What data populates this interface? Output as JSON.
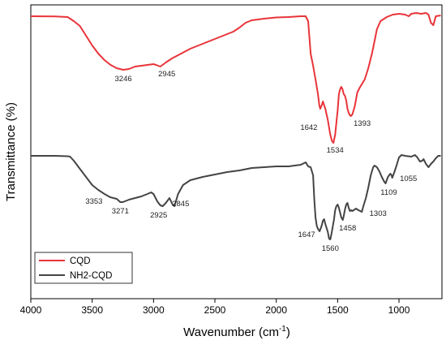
{
  "chart_data": {
    "type": "line",
    "xlabel": "Wavenumber (cm",
    "xlabel_sup": "-1",
    "xlabel_close": ")",
    "ylabel": "Transmittance (%)",
    "xlim": [
      4000,
      650
    ],
    "x_reversed": true,
    "xticks": [
      4000,
      3500,
      3000,
      2500,
      2000,
      1500,
      1000
    ],
    "y_tick_labels_shown": false,
    "grid": false,
    "legend_position": "bottom-left",
    "series": [
      {
        "name": "CQD",
        "color": "#e8343a",
        "points": [
          [
            4000,
            14
          ],
          [
            3800,
            14.2
          ],
          [
            3700,
            15
          ],
          [
            3650,
            20
          ],
          [
            3600,
            26
          ],
          [
            3550,
            38
          ],
          [
            3500,
            50
          ],
          [
            3450,
            60
          ],
          [
            3400,
            68
          ],
          [
            3350,
            74
          ],
          [
            3300,
            78
          ],
          [
            3246,
            80
          ],
          [
            3200,
            79
          ],
          [
            3150,
            76
          ],
          [
            3100,
            75
          ],
          [
            3050,
            74
          ],
          [
            3000,
            73
          ],
          [
            2980,
            74
          ],
          [
            2945,
            76
          ],
          [
            2900,
            71
          ],
          [
            2850,
            66
          ],
          [
            2800,
            62
          ],
          [
            2750,
            58
          ],
          [
            2700,
            54
          ],
          [
            2650,
            51
          ],
          [
            2600,
            48
          ],
          [
            2550,
            45
          ],
          [
            2500,
            42
          ],
          [
            2450,
            39
          ],
          [
            2400,
            36
          ],
          [
            2350,
            33
          ],
          [
            2300,
            28
          ],
          [
            2250,
            22
          ],
          [
            2200,
            19
          ],
          [
            2100,
            17
          ],
          [
            2000,
            15.5
          ],
          [
            1900,
            15
          ],
          [
            1800,
            14
          ],
          [
            1760,
            14
          ],
          [
            1740,
            20
          ],
          [
            1720,
            60
          ],
          [
            1700,
            75
          ],
          [
            1680,
            92
          ],
          [
            1660,
            110
          ],
          [
            1650,
            123
          ],
          [
            1642,
            128
          ],
          [
            1630,
            124
          ],
          [
            1620,
            119
          ],
          [
            1600,
            128
          ],
          [
            1580,
            142
          ],
          [
            1560,
            160
          ],
          [
            1545,
            168
          ],
          [
            1534,
            170
          ],
          [
            1520,
            160
          ],
          [
            1500,
            130
          ],
          [
            1490,
            110
          ],
          [
            1480,
            104
          ],
          [
            1470,
            101
          ],
          [
            1460,
            104
          ],
          [
            1450,
            110
          ],
          [
            1440,
            112
          ],
          [
            1430,
            118
          ],
          [
            1420,
            128
          ],
          [
            1410,
            133
          ],
          [
            1400,
            136
          ],
          [
            1393,
            137
          ],
          [
            1380,
            135
          ],
          [
            1360,
            125
          ],
          [
            1340,
            108
          ],
          [
            1320,
            102
          ],
          [
            1300,
            97
          ],
          [
            1280,
            92
          ],
          [
            1250,
            78
          ],
          [
            1220,
            60
          ],
          [
            1200,
            45
          ],
          [
            1180,
            30
          ],
          [
            1150,
            20
          ],
          [
            1100,
            15
          ],
          [
            1050,
            12
          ],
          [
            1000,
            11
          ],
          [
            950,
            12
          ],
          [
            920,
            14
          ],
          [
            900,
            11
          ],
          [
            860,
            10
          ],
          [
            820,
            11
          ],
          [
            780,
            10
          ],
          [
            760,
            12
          ],
          [
            740,
            22
          ],
          [
            720,
            25
          ],
          [
            700,
            14
          ],
          [
            660,
            13
          ]
        ]
      },
      {
        "name": "NH2-CQD",
        "color": "#444444",
        "points": [
          [
            4000,
            186
          ],
          [
            3800,
            186
          ],
          [
            3700,
            186.5
          ],
          [
            3680,
            187
          ],
          [
            3650,
            192
          ],
          [
            3600,
            202
          ],
          [
            3550,
            212
          ],
          [
            3500,
            222
          ],
          [
            3450,
            228
          ],
          [
            3400,
            233
          ],
          [
            3353,
            237
          ],
          [
            3300,
            239
          ],
          [
            3271,
            243
          ],
          [
            3250,
            243
          ],
          [
            3200,
            240
          ],
          [
            3150,
            238
          ],
          [
            3100,
            236
          ],
          [
            3050,
            233
          ],
          [
            3020,
            231
          ],
          [
            3000,
            233
          ],
          [
            2970,
            242
          ],
          [
            2945,
            247
          ],
          [
            2925,
            248
          ],
          [
            2900,
            244
          ],
          [
            2880,
            240
          ],
          [
            2870,
            238
          ],
          [
            2845,
            246
          ],
          [
            2830,
            248
          ],
          [
            2800,
            233
          ],
          [
            2760,
            222
          ],
          [
            2700,
            216
          ],
          [
            2600,
            212
          ],
          [
            2500,
            209
          ],
          [
            2400,
            206
          ],
          [
            2300,
            204
          ],
          [
            2200,
            201
          ],
          [
            2100,
            200
          ],
          [
            2000,
            199
          ],
          [
            1900,
            199
          ],
          [
            1800,
            197
          ],
          [
            1760,
            194
          ],
          [
            1740,
            199
          ],
          [
            1720,
            200
          ],
          [
            1700,
            210
          ],
          [
            1690,
            240
          ],
          [
            1680,
            262
          ],
          [
            1670,
            272
          ],
          [
            1660,
            276
          ],
          [
            1647,
            279
          ],
          [
            1630,
            272
          ],
          [
            1620,
            266
          ],
          [
            1610,
            264
          ],
          [
            1600,
            270
          ],
          [
            1580,
            280
          ],
          [
            1570,
            288
          ],
          [
            1560,
            289
          ],
          [
            1550,
            282
          ],
          [
            1530,
            265
          ],
          [
            1520,
            253
          ],
          [
            1510,
            248
          ],
          [
            1500,
            246
          ],
          [
            1490,
            250
          ],
          [
            1470,
            262
          ],
          [
            1458,
            265
          ],
          [
            1450,
            260
          ],
          [
            1440,
            252
          ],
          [
            1430,
            246
          ],
          [
            1420,
            244
          ],
          [
            1410,
            250
          ],
          [
            1400,
            254
          ],
          [
            1390,
            253
          ],
          [
            1380,
            254
          ],
          [
            1370,
            253
          ],
          [
            1350,
            251
          ],
          [
            1330,
            253
          ],
          [
            1303,
            255
          ],
          [
            1290,
            248
          ],
          [
            1270,
            238
          ],
          [
            1250,
            225
          ],
          [
            1230,
            210
          ],
          [
            1210,
            200
          ],
          [
            1200,
            198
          ],
          [
            1180,
            200
          ],
          [
            1160,
            205
          ],
          [
            1140,
            212
          ],
          [
            1120,
            218
          ],
          [
            1109,
            220
          ],
          [
            1100,
            216
          ],
          [
            1090,
            212
          ],
          [
            1070,
            208
          ],
          [
            1060,
            210
          ],
          [
            1055,
            213
          ],
          [
            1040,
            207
          ],
          [
            1020,
            198
          ],
          [
            1000,
            188
          ],
          [
            980,
            185
          ],
          [
            950,
            186
          ],
          [
            900,
            187
          ],
          [
            870,
            185
          ],
          [
            850,
            188
          ],
          [
            830,
            193
          ],
          [
            810,
            192
          ],
          [
            800,
            190
          ],
          [
            780,
            196
          ],
          [
            760,
            200
          ],
          [
            740,
            196
          ],
          [
            720,
            193
          ],
          [
            700,
            189
          ],
          [
            680,
            186
          ],
          [
            660,
            186
          ]
        ]
      }
    ],
    "annotations": [
      {
        "text": "3246",
        "x": 3246,
        "series": 0,
        "dx": 0,
        "dy": 14
      },
      {
        "text": "2945",
        "x": 2945,
        "series": 0,
        "dx": 8,
        "dy": 12
      },
      {
        "text": "1642",
        "x": 1642,
        "series": 0,
        "dx": -14,
        "dy": 26
      },
      {
        "text": "1534",
        "x": 1534,
        "series": 0,
        "dx": 2,
        "dy": 12
      },
      {
        "text": "1393",
        "x": 1393,
        "series": 0,
        "dx": 14,
        "dy": 12
      },
      {
        "text": "3353",
        "x": 3353,
        "series": 1,
        "dx": -20,
        "dy": 8
      },
      {
        "text": "3271",
        "x": 3271,
        "series": 1,
        "dx": 0,
        "dy": 14
      },
      {
        "text": "2925",
        "x": 2925,
        "series": 1,
        "dx": -5,
        "dy": 14
      },
      {
        "text": "2845",
        "x": 2845,
        "series": 1,
        "dx": 10,
        "dy": 2
      },
      {
        "text": "1647",
        "x": 1647,
        "series": 1,
        "dx": -16,
        "dy": 7
      },
      {
        "text": "1560",
        "x": 1560,
        "series": 1,
        "dx": 0,
        "dy": 14
      },
      {
        "text": "1458",
        "x": 1458,
        "series": 1,
        "dx": 6,
        "dy": 13
      },
      {
        "text": "1303",
        "x": 1303,
        "series": 1,
        "dx": 20,
        "dy": 5
      },
      {
        "text": "1109",
        "x": 1109,
        "series": 1,
        "dx": 4,
        "dy": 14
      },
      {
        "text": "1055",
        "x": 1055,
        "series": 1,
        "dx": 20,
        "dy": 4
      }
    ]
  }
}
